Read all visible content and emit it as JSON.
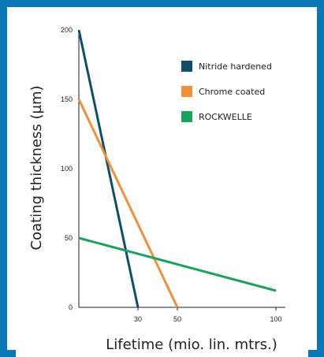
{
  "chart_data": {
    "type": "line",
    "xlabel": "Lifetime (mio. lin. mtrs.)",
    "ylabel": "Coating thickness (µm)",
    "xlim": [
      0,
      100
    ],
    "ylim": [
      0,
      200
    ],
    "x_ticks": [
      30,
      50,
      100
    ],
    "y_ticks": [
      0,
      50,
      100,
      150,
      200
    ],
    "grid": false,
    "legend_position": "top-right",
    "series": [
      {
        "name": "Nitride hardened",
        "color": "#0b4f6c",
        "points": [
          [
            0,
            200
          ],
          [
            30,
            0
          ]
        ]
      },
      {
        "name": "Chrome coated",
        "color": "#f0913a",
        "points": [
          [
            0,
            150
          ],
          [
            50,
            0
          ]
        ]
      },
      {
        "name": "ROCKWELLE",
        "color": "#1aa35c",
        "points": [
          [
            0,
            50
          ],
          [
            100,
            12
          ]
        ]
      }
    ]
  }
}
